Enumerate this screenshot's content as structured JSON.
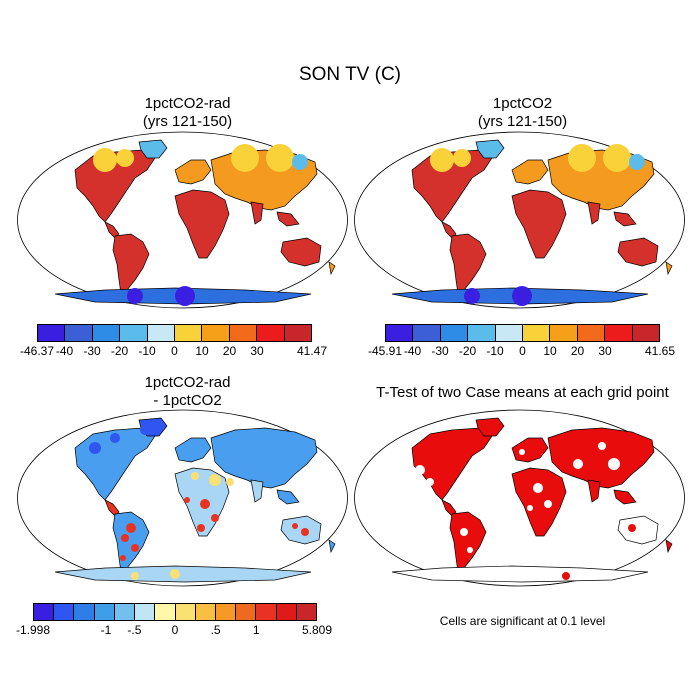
{
  "figure_title": "SON TV (C)",
  "panels": [
    {
      "title_line1": "1pctCO2-rad",
      "title_line2": "(yrs 121-150)",
      "colorbar": {
        "colors": [
          "#3a1fe0",
          "#3c5fd8",
          "#2e8ce6",
          "#5bbbeb",
          "#c8e8f5",
          "#f9d23a",
          "#f6a01a",
          "#f36a1a",
          "#ec1c1c",
          "#c8262a"
        ],
        "labels": [
          "-46.37",
          "-40",
          "-30",
          "-20",
          "-10",
          "0",
          "10",
          "20",
          "30",
          "41.47"
        ]
      }
    },
    {
      "title_line1": "1pctCO2",
      "title_line2": "(yrs 121-150)",
      "colorbar": {
        "colors": [
          "#3a1fe0",
          "#3c5fd8",
          "#2e8ce6",
          "#5bbbeb",
          "#c8e8f5",
          "#f9d23a",
          "#f6a01a",
          "#f36a1a",
          "#ec1c1c",
          "#c8262a"
        ],
        "labels": [
          "-45.91",
          "-40",
          "-30",
          "-20",
          "-10",
          "0",
          "10",
          "20",
          "30",
          "41.65"
        ]
      }
    },
    {
      "title_line1": "1pctCO2-rad",
      "title_line2": "- 1pctCO2",
      "colorbar": {
        "colors": [
          "#3a1fe0",
          "#2f56f0",
          "#2f7ee8",
          "#3e9eea",
          "#73c0ee",
          "#c0e6f5",
          "#fff8a8",
          "#fbe073",
          "#f8c042",
          "#f59a26",
          "#ee6a20",
          "#e83222",
          "#e01a1a",
          "#c8262a"
        ],
        "labels": [
          "-1.998",
          "-1",
          "-.5",
          "0",
          ".5",
          "1",
          "5.809"
        ]
      }
    },
    {
      "title": "T-Test of two Case means at each grid point",
      "note": "Cells are significant at 0.1 level"
    }
  ],
  "map_colors": {
    "ocean": "#ffffff",
    "coast": "#000000",
    "warm": "#d4302c",
    "hot": "#e81e22",
    "orange": "#f49a1e",
    "yellow": "#f9d23a",
    "cold": "#5bbbeb",
    "colder": "#2e6fe0",
    "coldest": "#3a1fe0",
    "sig": "#e80c0c",
    "diff_blue": "#4a9ef0",
    "diff_light": "#a8d6f4",
    "diff_dark": "#2f56f0",
    "diff_yellow": "#fbe073",
    "diff_red": "#e83222"
  }
}
